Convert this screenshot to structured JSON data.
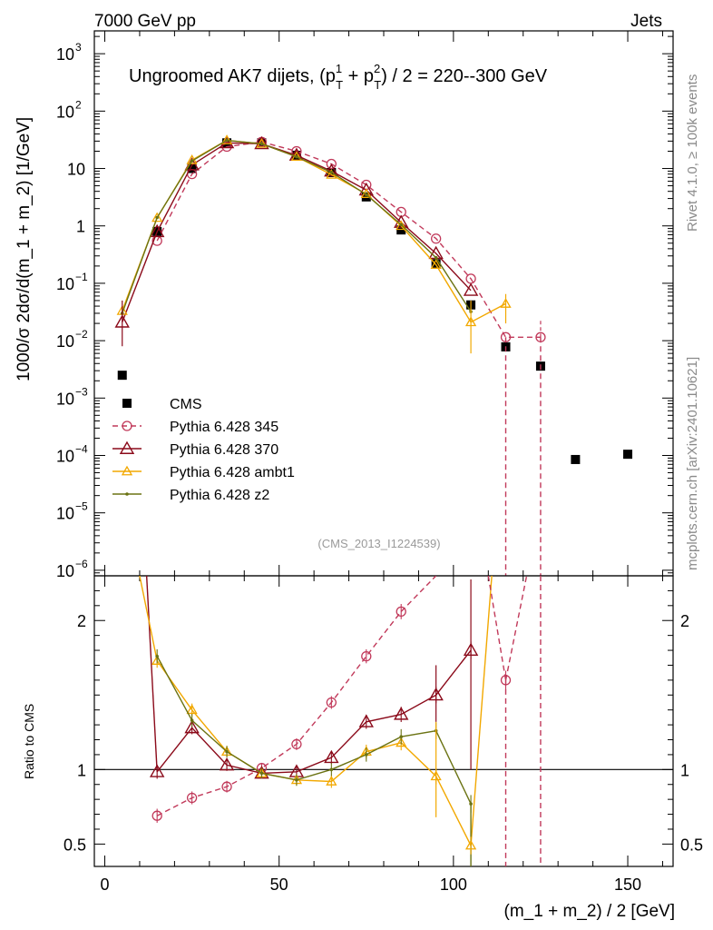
{
  "header": {
    "left": "7000 GeV pp",
    "right": "Jets"
  },
  "title_parts": {
    "pre": "Ungroomed AK7 dijets, (p",
    "sup1": "1",
    "sub1": "T",
    "mid": " + p",
    "sup2": "2",
    "sub2": "T",
    "post": ") / 2 = 220--300 GeV"
  },
  "side_labels": {
    "rivet": "Rivet 4.1.0, ≥ 100k events",
    "mcplots": "mcplots.cern.ch [arXiv:2401.10621]"
  },
  "analysis_id": "(CMS_2013_I1224539)",
  "colors": {
    "cms": "#000000",
    "p345": "#c1395a",
    "p370": "#8b0a1a",
    "ambt1": "#f2a800",
    "z2": "#6b7313"
  },
  "chart_data": [
    {
      "type": "scatter",
      "name": "main",
      "yscale": "log",
      "ylabel": "1000/σ  2dσ/d(m_1 + m_2) [1/GeV]",
      "xlabel": "(m_1 + m_2) / 2 [GeV]",
      "xlim": [
        -3,
        163
      ],
      "ylim": [
        8e-07,
        2500
      ],
      "yticks": [
        {
          "v": 1000,
          "label": "10",
          "exp": "3"
        },
        {
          "v": 100,
          "label": "10",
          "exp": "2"
        },
        {
          "v": 10,
          "label": "10",
          "exp": ""
        },
        {
          "v": 1,
          "label": "1",
          "exp": ""
        },
        {
          "v": 0.1,
          "label": "10",
          "exp": "−1"
        },
        {
          "v": 0.01,
          "label": "10",
          "exp": "−2"
        },
        {
          "v": 0.001,
          "label": "10",
          "exp": "−3"
        },
        {
          "v": 0.0001,
          "label": "10",
          "exp": "−4"
        },
        {
          "v": 1e-05,
          "label": "10",
          "exp": "−5"
        },
        {
          "v": 1e-06,
          "label": "10",
          "exp": "−6"
        }
      ],
      "legend_position": "middle-left",
      "series": [
        {
          "key": "cms",
          "name": "CMS",
          "x": [
            5,
            15,
            25,
            35,
            45,
            55,
            65,
            75,
            85,
            95,
            105,
            115,
            125,
            135,
            150
          ],
          "y": [
            0.0025,
            0.8,
            10,
            28,
            28,
            17,
            8.5,
            3.2,
            0.85,
            0.22,
            0.042,
            0.0078,
            0.0036,
            8.5e-05,
            0.000105
          ]
        },
        {
          "key": "p345",
          "name": "Pythia 6.428 345",
          "x": [
            15,
            25,
            35,
            45,
            55,
            65,
            75,
            85,
            95,
            105,
            115,
            125
          ],
          "y": [
            0.55,
            8.0,
            24,
            29,
            20,
            12,
            5.2,
            1.75,
            0.6,
            0.12,
            0.0115,
            0.0115
          ]
        },
        {
          "key": "p370",
          "name": "Pythia 6.428 370",
          "x": [
            5,
            15,
            25,
            35,
            45,
            55,
            65,
            75,
            85,
            95,
            105
          ],
          "y": [
            0.021,
            0.79,
            11.5,
            28,
            27,
            17,
            9.0,
            4.2,
            1.15,
            0.33,
            0.075
          ]
        },
        {
          "key": "ambt1",
          "name": "Pythia 6.428 ambt1",
          "x": [
            5,
            15,
            25,
            35,
            45,
            55,
            65,
            75,
            85,
            95,
            105,
            115
          ],
          "y": [
            0.033,
            1.38,
            14,
            31,
            27,
            16,
            7.8,
            3.6,
            1.0,
            0.21,
            0.021,
            0.044
          ]
        },
        {
          "key": "z2",
          "name": "Pythia 6.428 z2",
          "x": [
            5,
            15,
            25,
            35,
            45,
            55,
            65,
            75,
            85,
            95,
            105
          ],
          "y": [
            0.03,
            1.4,
            13.5,
            31,
            27,
            16,
            8.6,
            3.5,
            1.05,
            0.28,
            0.032
          ]
        }
      ]
    },
    {
      "type": "line",
      "name": "ratio",
      "ylabel": "Ratio to CMS",
      "xlabel": "(m_1 + m_2) / 2 [GeV]",
      "xlim": [
        -3,
        163
      ],
      "ylim": [
        0.35,
        2.3
      ],
      "yticks": [
        0.5,
        1,
        2
      ],
      "xticks": [
        0,
        50,
        100,
        150
      ],
      "reference_line": 1,
      "series": [
        {
          "key": "p345",
          "x": [
            15,
            25,
            35,
            45,
            55,
            65,
            75,
            85,
            115
          ],
          "y": [
            0.69,
            0.81,
            0.885,
            1.01,
            1.17,
            1.45,
            1.76,
            2.06,
            1.6
          ]
        },
        {
          "key": "p370",
          "x": [
            15,
            25,
            35,
            45,
            55,
            65,
            75,
            85,
            95,
            105
          ],
          "y": [
            0.985,
            1.28,
            1.03,
            0.975,
            0.985,
            1.08,
            1.32,
            1.37,
            1.5,
            1.8
          ]
        },
        {
          "key": "ambt1",
          "x": [
            15,
            25,
            35,
            45,
            55,
            65,
            75,
            85,
            95,
            105
          ],
          "y": [
            1.73,
            1.4,
            1.12,
            0.975,
            0.93,
            0.92,
            1.12,
            1.18,
            0.955,
            0.49
          ]
        },
        {
          "key": "z2",
          "x": [
            15,
            25,
            35,
            45,
            55,
            65,
            75,
            85,
            95,
            105
          ],
          "y": [
            1.76,
            1.33,
            1.12,
            0.975,
            0.93,
            1.0,
            1.1,
            1.22,
            1.26,
            0.77
          ]
        }
      ]
    }
  ]
}
